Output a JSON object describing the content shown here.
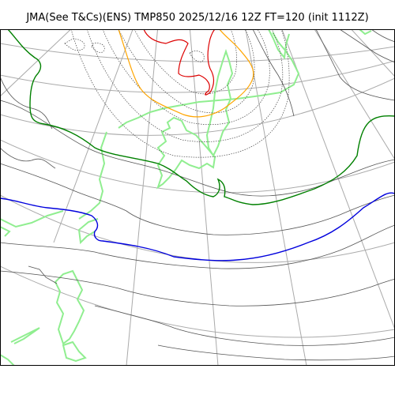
{
  "title": "JMA(See T&Cs)(ENS) TMP850 2025/12/16 12Z FT=120 (init 1112Z)",
  "map": {
    "product": "TMP850",
    "ensemble": "ENS",
    "valid": "2025/12/16 12Z",
    "forecast_hour": "FT=120",
    "init": "init 1112Z",
    "colors": {
      "background": "#ffffff",
      "graticule": "#aaaaaa",
      "coastline": "#90ee90",
      "isotherm": "#555555",
      "isotherm_dotted": "#444444",
      "isotherm_zero": "#0000dd",
      "isotherm_green": "#008000",
      "isotherm_orange": "#ffa500",
      "isotherm_red": "#dd0000",
      "frame": "#000000"
    }
  }
}
